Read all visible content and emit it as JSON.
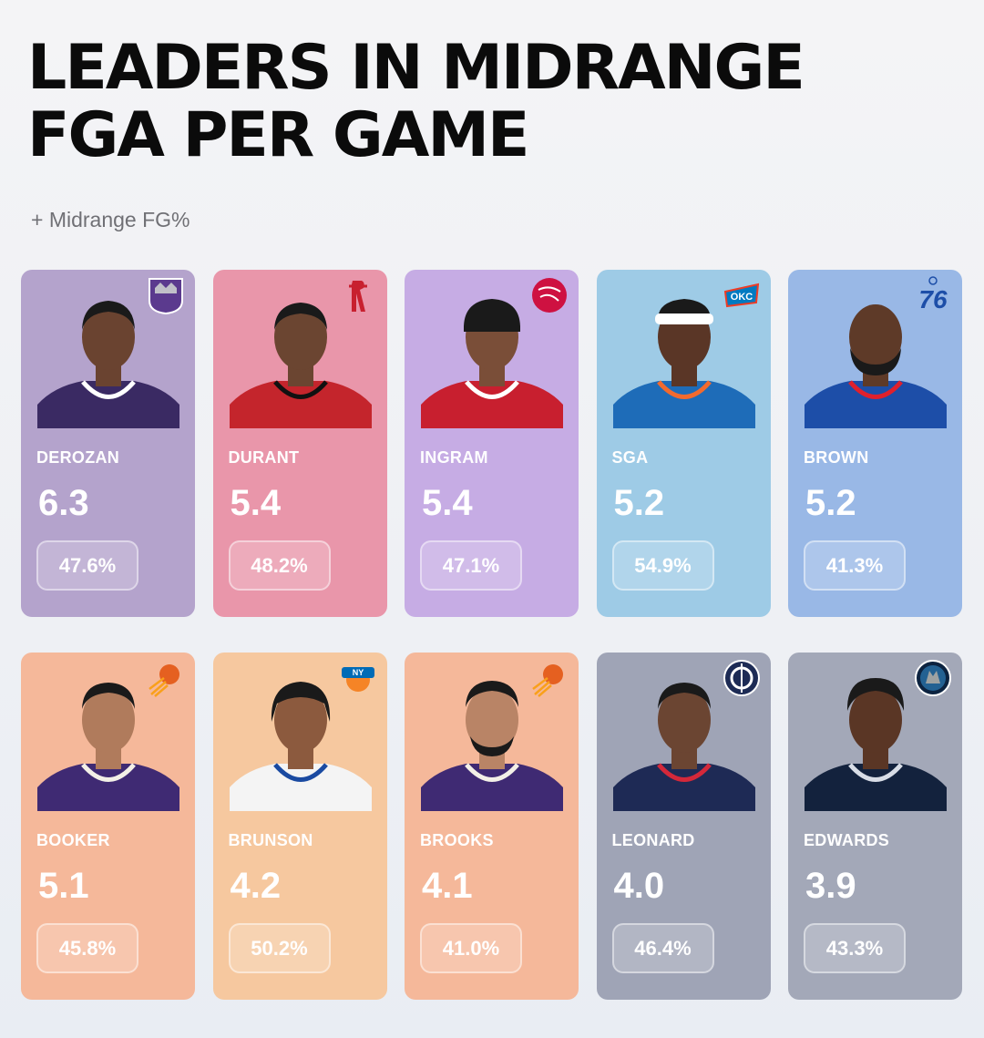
{
  "title_line1": "LEADERS IN MIDRANGE",
  "title_line2": "FGA PER GAME",
  "subtitle": "+ Midrange FG%",
  "players": [
    {
      "name": "DEROZAN",
      "value": "6.3",
      "pct": "47.6%",
      "team_logo": "kings-logo",
      "jersey": "#3a2a63",
      "trim": "#ffffff",
      "skin": "#6a4330"
    },
    {
      "name": "DURANT",
      "value": "5.4",
      "pct": "48.2%",
      "team_logo": "rockets-logo",
      "jersey": "#c4252c",
      "trim": "#111111",
      "skin": "#6b4531"
    },
    {
      "name": "INGRAM",
      "value": "5.4",
      "pct": "47.1%",
      "team_logo": "raptors-logo",
      "jersey": "#c81f2f",
      "trim": "#ffffff",
      "skin": "#7a4e38"
    },
    {
      "name": "SGA",
      "value": "5.2",
      "pct": "54.9%",
      "team_logo": "thunder-logo",
      "jersey": "#1e6cb8",
      "trim": "#f26a2e",
      "skin": "#5a3626"
    },
    {
      "name": "BROWN",
      "value": "5.2",
      "pct": "41.3%",
      "team_logo": "sixers-logo",
      "jersey": "#1d4ea8",
      "trim": "#e0202c",
      "skin": "#5e3a28"
    },
    {
      "name": "BOOKER",
      "value": "5.1",
      "pct": "45.8%",
      "team_logo": "suns-logo",
      "jersey": "#3f2a73",
      "trim": "#f3f0e7",
      "skin": "#b07b5c"
    },
    {
      "name": "BRUNSON",
      "value": "4.2",
      "pct": "50.2%",
      "team_logo": "knicks-logo",
      "jersey": "#f4f4f4",
      "trim": "#1a4aa1",
      "skin": "#8c5a3e"
    },
    {
      "name": "BROOKS",
      "value": "4.1",
      "pct": "41.0%",
      "team_logo": "suns-logo",
      "jersey": "#3f2a73",
      "trim": "#f3f0e7",
      "skin": "#b98466"
    },
    {
      "name": "LEONARD",
      "value": "4.0",
      "pct": "46.4%",
      "team_logo": "clippers-logo",
      "jersey": "#1e2a55",
      "trim": "#d4283a",
      "skin": "#6b4532"
    },
    {
      "name": "EDWARDS",
      "value": "3.9",
      "pct": "43.3%",
      "team_logo": "timberwolves-logo",
      "jersey": "#13223d",
      "trim": "#d8dde6",
      "skin": "#5a3625"
    }
  ]
}
